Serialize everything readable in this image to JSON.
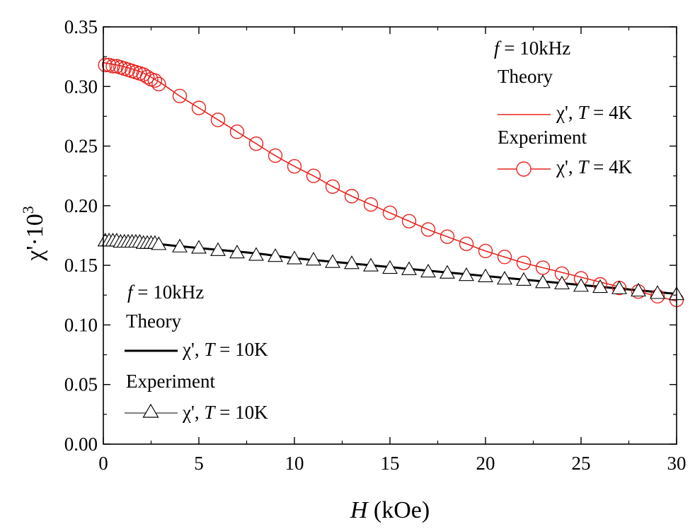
{
  "chart_data": {
    "type": "line",
    "xlabel_var": "H",
    "xlabel_unit": " (kOe)",
    "ylabel_base": "χ'·10",
    "ylabel_exp": "3",
    "xlim": [
      0,
      30
    ],
    "ylim": [
      0,
      0.35
    ],
    "xticks": [
      0,
      5,
      10,
      15,
      20,
      25,
      30
    ],
    "xtick_labels": [
      "0",
      "5",
      "10",
      "15",
      "20",
      "25",
      "30"
    ],
    "yticks": [
      0,
      0.05,
      0.1,
      0.15,
      0.2,
      0.25,
      0.3,
      0.35
    ],
    "ytick_labels": [
      "0.00",
      "0.05",
      "0.10",
      "0.15",
      "0.20",
      "0.25",
      "0.30",
      "0.35"
    ],
    "series": [
      {
        "name": "Theory χ', T = 4K",
        "kind": "line",
        "color": "#e8231f",
        "x": [
          0,
          1,
          2,
          3,
          4,
          5,
          6,
          7,
          8,
          9,
          10,
          11,
          12,
          13,
          14,
          15,
          16,
          17,
          18,
          19,
          20,
          21,
          22,
          23,
          24,
          25,
          26,
          27,
          28,
          29,
          30
        ],
        "y": [
          0.32,
          0.317,
          0.312,
          0.303,
          0.292,
          0.282,
          0.272,
          0.262,
          0.252,
          0.242,
          0.233,
          0.225,
          0.216,
          0.208,
          0.201,
          0.194,
          0.187,
          0.18,
          0.174,
          0.168,
          0.162,
          0.157,
          0.152,
          0.148,
          0.144,
          0.14,
          0.136,
          0.132,
          0.128,
          0.124,
          0.12
        ]
      },
      {
        "name": "Experiment χ', T = 4K",
        "kind": "marker-circle",
        "color": "#e8231f",
        "x": [
          0.1,
          0.3,
          0.5,
          0.7,
          0.9,
          1.1,
          1.3,
          1.5,
          1.7,
          1.9,
          2.1,
          2.3,
          2.5,
          2.7,
          2.9,
          4,
          5,
          6,
          7,
          8,
          9,
          10,
          11,
          12,
          13,
          14,
          15,
          16,
          17,
          18,
          19,
          20,
          21,
          22,
          23,
          24,
          25,
          26,
          27,
          28,
          29,
          30
        ],
        "y": [
          0.318,
          0.318,
          0.317,
          0.317,
          0.316,
          0.315,
          0.314,
          0.313,
          0.312,
          0.311,
          0.31,
          0.308,
          0.306,
          0.305,
          0.302,
          0.292,
          0.282,
          0.272,
          0.262,
          0.252,
          0.242,
          0.233,
          0.225,
          0.216,
          0.208,
          0.201,
          0.194,
          0.187,
          0.18,
          0.174,
          0.168,
          0.162,
          0.157,
          0.152,
          0.148,
          0.143,
          0.139,
          0.134,
          0.131,
          0.128,
          0.124,
          0.121
        ]
      },
      {
        "name": "Theory χ', T = 10K",
        "kind": "line",
        "color": "#000000",
        "x": [
          0,
          2,
          4,
          6,
          8,
          10,
          12,
          14,
          16,
          18,
          20,
          22,
          24,
          26,
          28,
          30
        ],
        "y": [
          0.17,
          0.169,
          0.166,
          0.163,
          0.16,
          0.156,
          0.153,
          0.15,
          0.147,
          0.144,
          0.141,
          0.138,
          0.135,
          0.132,
          0.129,
          0.126
        ]
      },
      {
        "name": "Experiment χ', T = 10K",
        "kind": "marker-triangle",
        "color": "#000000",
        "x": [
          0.1,
          0.3,
          0.5,
          0.7,
          0.9,
          1.1,
          1.3,
          1.5,
          1.7,
          1.9,
          2.1,
          2.3,
          2.5,
          2.7,
          2.9,
          4,
          5,
          6,
          7,
          8,
          9,
          10,
          11,
          12,
          13,
          14,
          15,
          16,
          17,
          18,
          19,
          20,
          21,
          22,
          23,
          24,
          25,
          26,
          27,
          28,
          29,
          30
        ],
        "y": [
          0.171,
          0.171,
          0.171,
          0.171,
          0.17,
          0.17,
          0.17,
          0.17,
          0.17,
          0.17,
          0.169,
          0.169,
          0.169,
          0.169,
          0.168,
          0.166,
          0.165,
          0.163,
          0.161,
          0.159,
          0.158,
          0.156,
          0.155,
          0.153,
          0.152,
          0.15,
          0.148,
          0.147,
          0.145,
          0.144,
          0.142,
          0.141,
          0.139,
          0.138,
          0.136,
          0.135,
          0.133,
          0.132,
          0.131,
          0.129,
          0.127,
          0.126
        ]
      }
    ]
  },
  "legend_4k": {
    "freq_var": "f",
    "freq_val": " = 10kHz",
    "theory": "Theory",
    "experiment": "Experiment",
    "chi": "χ', ",
    "temp_var": "T",
    "temp_val": " = 4K"
  },
  "legend_10k": {
    "freq_var": "f",
    "freq_val": " = 10kHz",
    "theory": "Theory",
    "experiment": "Experiment",
    "chi": "χ', ",
    "temp_var": "T",
    "temp_val": " = 10K"
  }
}
